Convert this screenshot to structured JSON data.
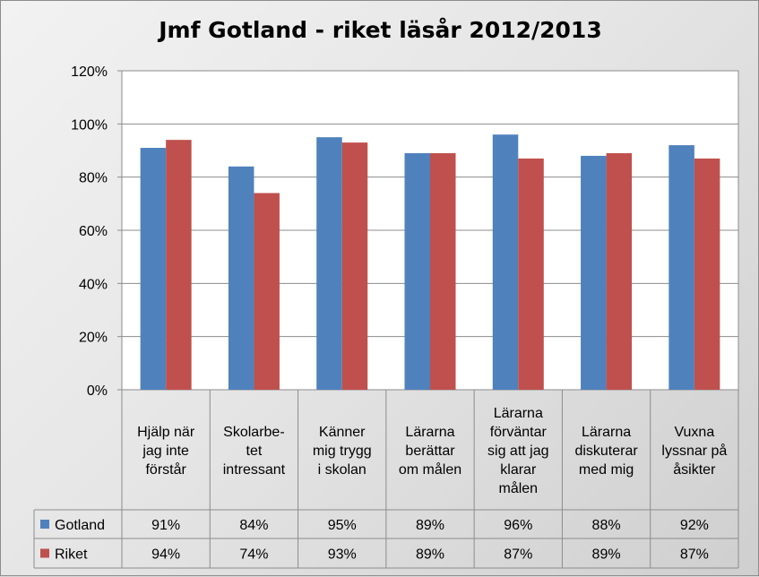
{
  "chart_data": {
    "type": "bar",
    "title": "Jmf Gotland  - riket läsår 2012/2013",
    "xlabel": "",
    "ylabel": "",
    "ylim": [
      0,
      1.2
    ],
    "yticks": [
      0,
      0.2,
      0.4,
      0.6,
      0.8,
      1.0,
      1.2
    ],
    "ytick_labels": [
      "0%",
      "20%",
      "40%",
      "60%",
      "80%",
      "100%",
      "120%"
    ],
    "grid": true,
    "legend": "data-table",
    "categories": [
      [
        "Hjälp när",
        "jag inte",
        "förstår"
      ],
      [
        "Skolarbe-",
        "tet",
        "intressant"
      ],
      [
        "Känner",
        "mig trygg",
        "i skolan"
      ],
      [
        "Lärarna",
        "berättar",
        "om målen"
      ],
      [
        "Lärarna",
        "förväntar",
        "sig att jag",
        "klarar",
        "målen"
      ],
      [
        "Lärarna",
        "diskuterar",
        "med mig"
      ],
      [
        "Vuxna",
        "lyssnar på",
        "åsikter"
      ]
    ],
    "series": [
      {
        "name": "Gotland",
        "color": "#4f81bd",
        "values": [
          0.91,
          0.84,
          0.95,
          0.89,
          0.96,
          0.88,
          0.92
        ],
        "labels": [
          "91%",
          "84%",
          "95%",
          "89%",
          "96%",
          "88%",
          "92%"
        ]
      },
      {
        "name": "Riket",
        "color": "#c0504d",
        "values": [
          0.94,
          0.74,
          0.93,
          0.89,
          0.87,
          0.89,
          0.87
        ],
        "labels": [
          "94%",
          "74%",
          "93%",
          "89%",
          "87%",
          "89%",
          "87%"
        ]
      }
    ]
  }
}
